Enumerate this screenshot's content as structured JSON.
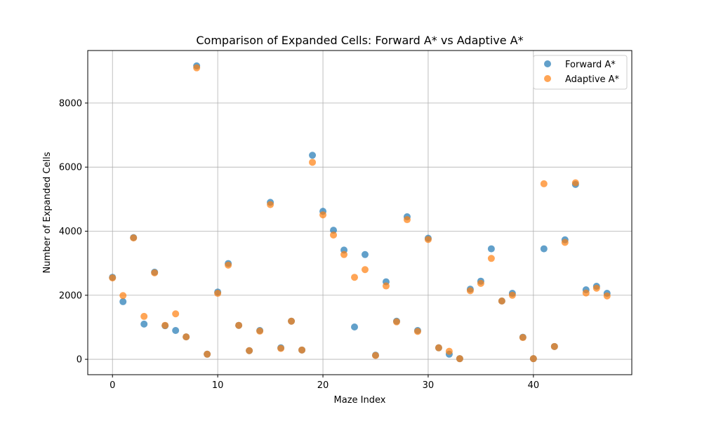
{
  "chart_data": {
    "type": "scatter",
    "title": "Comparison of Expanded Cells: Forward A* vs Adaptive A*",
    "xlabel": "Maze Index",
    "ylabel": "Number of Expanded Cells",
    "xlim": [
      -2.35,
      49.35
    ],
    "ylim": [
      -480,
      9640
    ],
    "xticks": [
      0,
      10,
      20,
      30,
      40
    ],
    "yticks": [
      0,
      2000,
      4000,
      6000,
      8000
    ],
    "grid": true,
    "legend_position": "top-right",
    "x": [
      0,
      1,
      2,
      3,
      4,
      5,
      6,
      7,
      8,
      9,
      10,
      11,
      12,
      13,
      14,
      15,
      16,
      17,
      18,
      19,
      20,
      21,
      22,
      23,
      24,
      25,
      26,
      27,
      28,
      29,
      30,
      31,
      32,
      33,
      34,
      35,
      36,
      37,
      38,
      39,
      40,
      41,
      42,
      43,
      44,
      45,
      46,
      47
    ],
    "series": [
      {
        "name": "Forward A*",
        "color": "#1f77b4",
        "values": [
          2560,
          1800,
          3800,
          1100,
          2720,
          1050,
          900,
          700,
          9160,
          160,
          2100,
          2990,
          1060,
          270,
          900,
          4900,
          360,
          1190,
          290,
          6370,
          4620,
          4030,
          3410,
          1010,
          3270,
          130,
          2420,
          1190,
          4450,
          900,
          3780,
          360,
          160,
          20,
          2190,
          2440,
          3450,
          1820,
          2060,
          690,
          20,
          3450,
          400,
          3730,
          5460,
          2170,
          2280,
          2060
        ]
      },
      {
        "name": "Adaptive A*",
        "color": "#ff7f0e",
        "values": [
          2540,
          1990,
          3790,
          1340,
          2700,
          1060,
          1420,
          700,
          9100,
          160,
          2060,
          2940,
          1060,
          270,
          880,
          4830,
          340,
          1190,
          290,
          6150,
          4510,
          3880,
          3270,
          2560,
          2800,
          120,
          2290,
          1170,
          4360,
          870,
          3740,
          360,
          250,
          20,
          2140,
          2370,
          3150,
          1820,
          2000,
          680,
          20,
          5480,
          400,
          3650,
          5510,
          2070,
          2220,
          1980
        ]
      }
    ]
  }
}
